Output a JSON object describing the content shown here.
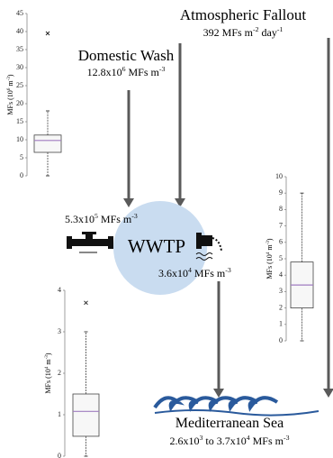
{
  "labels": {
    "atmospheric": {
      "title": "Atmospheric Fallout",
      "value_parts": [
        "392 MFs m",
        "-2",
        " day",
        "-1"
      ]
    },
    "domestic": {
      "title": "Domestic Wash",
      "value_parts": [
        "12.8x10",
        "6",
        " MFs m",
        "-3"
      ]
    },
    "inflow": {
      "value_parts": [
        "5.3x10",
        "5",
        " MFs m",
        "-3"
      ]
    },
    "wwtp": {
      "title": "WWTP"
    },
    "outflow": {
      "value_parts": [
        "3.6x10",
        "4",
        " MFs m",
        "-3"
      ]
    },
    "sea": {
      "title": "Mediterranean Sea",
      "value_parts": [
        "2.6x10",
        "3",
        " to 3.7x10",
        "4",
        " MFs m",
        "-3"
      ]
    }
  },
  "boxplots": [
    {
      "ylabel_parts": [
        "MFs (10",
        "6",
        " m",
        "-3",
        ")"
      ],
      "ylim": [
        0,
        45
      ],
      "yticks": [
        0,
        5,
        10,
        15,
        20,
        25,
        30,
        35,
        40,
        45
      ],
      "min": 0,
      "q1": 6.5,
      "median": 9.8,
      "q3": 11.3,
      "max": 18,
      "outliers": [
        39.5
      ],
      "median_color": "#a07cc0"
    },
    {
      "ylabel_parts": [
        "MFs (10",
        "4",
        " m",
        "-3",
        ")"
      ],
      "ylim": [
        0,
        10
      ],
      "yticks": [
        0,
        1,
        2,
        3,
        4,
        5,
        6,
        7,
        8,
        9,
        10
      ],
      "min": 0,
      "q1": 2.0,
      "median": 3.4,
      "q3": 4.8,
      "max": 9,
      "outliers": [],
      "median_color": "#a07cc0"
    },
    {
      "ylabel_parts": [
        "MFs (10",
        "4",
        " m",
        "-3",
        ")"
      ],
      "ylim": [
        0,
        4
      ],
      "yticks": [
        0,
        1,
        2,
        3,
        4
      ],
      "min": 0,
      "q1": 0.48,
      "median": 1.08,
      "q3": 1.5,
      "max": 3,
      "outliers": [
        3.7
      ],
      "median_color": "#a07cc0"
    }
  ]
}
